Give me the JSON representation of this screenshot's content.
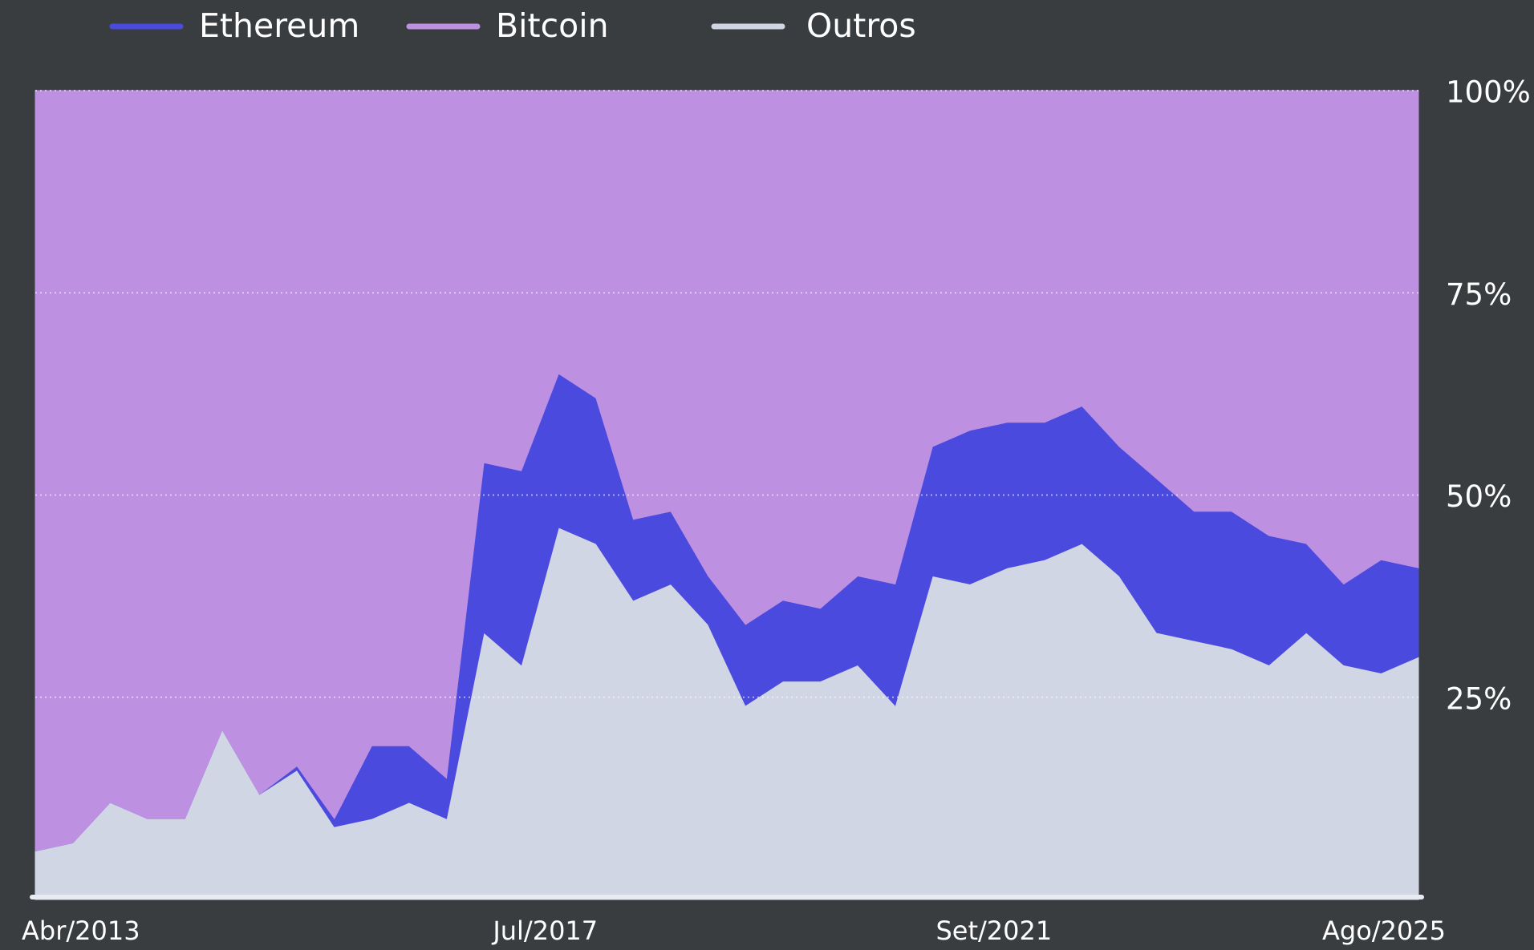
{
  "chart_data": {
    "type": "stacked_area",
    "categories": [
      "Abr/2013",
      null,
      null,
      null,
      null,
      null,
      null,
      null,
      null,
      null,
      null,
      null,
      null,
      "Jul/2017",
      null,
      null,
      null,
      null,
      null,
      null,
      null,
      null,
      null,
      null,
      null,
      "Set/2021",
      null,
      null,
      null,
      null,
      null,
      null,
      null,
      null,
      null,
      null,
      null,
      "Ago/2025"
    ],
    "series": [
      {
        "name": "Ethereum",
        "color": "#4b4ade",
        "values": [
          0,
          0,
          0,
          0,
          0,
          0,
          0,
          0.5,
          1,
          9,
          7,
          5,
          21,
          24,
          19,
          18,
          10,
          9,
          6,
          10,
          10,
          9,
          11,
          15,
          16,
          19,
          18,
          17,
          17,
          16,
          19,
          16,
          17,
          16,
          11,
          10,
          14,
          11
        ]
      },
      {
        "name": "Bitcoin",
        "color": "#bd90e2",
        "values": [
          94,
          93,
          88,
          90,
          90,
          79,
          87,
          83.5,
          90,
          81,
          81,
          85,
          46,
          47,
          35,
          38,
          53,
          52,
          60,
          66,
          63,
          64,
          60,
          61,
          44,
          42,
          41,
          41,
          39,
          44,
          48,
          52,
          52,
          55,
          56,
          61,
          58,
          59
        ]
      },
      {
        "name": "Outros",
        "color": "#d0d6e4",
        "values": [
          6,
          7,
          12,
          10,
          10,
          21,
          13,
          16,
          9,
          10,
          12,
          10,
          33,
          29,
          46,
          44,
          37,
          39,
          34,
          24,
          27,
          27,
          29,
          24,
          40,
          39,
          41,
          42,
          44,
          40,
          33,
          32,
          31,
          29,
          33,
          29,
          28,
          30
        ]
      }
    ],
    "ylim": [
      0,
      100
    ],
    "yticks": [
      {
        "value": 25,
        "label": "25%"
      },
      {
        "value": 50,
        "label": "50%"
      },
      {
        "value": 75,
        "label": "75%"
      },
      {
        "value": 100,
        "label": "100%"
      }
    ],
    "grid": true
  }
}
